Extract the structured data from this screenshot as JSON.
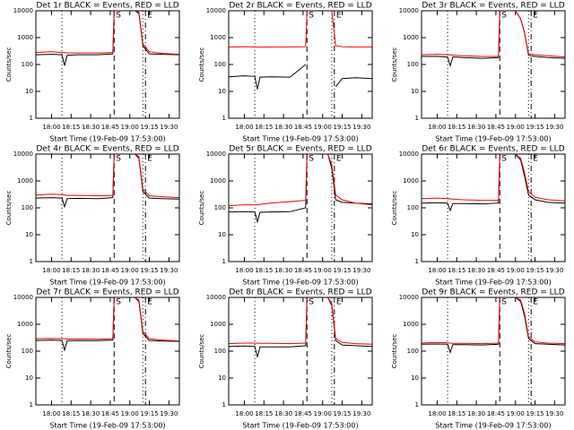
{
  "chart_data": [
    {
      "type": "line",
      "title": "Det 1r BLACK = Events, RED = LLD",
      "x_label": "Start Time (19-Feb-09 17:53:00)",
      "y_label": "Counts/sec",
      "log_y": true,
      "x": [
        "17:48",
        "18:00",
        "18:08",
        "18:10",
        "18:12",
        "18:20",
        "18:35",
        "18:47",
        "18:48",
        "18:55",
        "19:00",
        "19:04",
        "19:07",
        "19:10",
        "19:15",
        "19:25",
        "19:38"
      ],
      "series": [
        {
          "name": "Events",
          "color": "#000000",
          "values": [
            230,
            240,
            230,
            90,
            220,
            230,
            230,
            250,
            10000,
            10000,
            10000,
            10000,
            8000,
            500,
            250,
            240,
            230
          ]
        },
        {
          "name": "LLD",
          "color": "#ff0000",
          "values": [
            280,
            300,
            280,
            280,
            270,
            270,
            270,
            280,
            10000,
            10000,
            10000,
            10000,
            9000,
            600,
            300,
            260,
            240
          ]
        }
      ],
      "xlim": [
        "17:48",
        "19:38"
      ],
      "xticks": [
        "18:00",
        "18:15",
        "18:30",
        "18:45",
        "19:00",
        "19:15",
        "19:30"
      ],
      "ylim": [
        1,
        10000
      ],
      "yticks": [
        1,
        10,
        100,
        1000,
        10000
      ],
      "markers": [
        {
          "x": "18:08",
          "style": "dotted"
        },
        {
          "x": "18:48",
          "style": "dashed",
          "label": "S"
        },
        {
          "x": "19:10",
          "style": "dotted"
        },
        {
          "x": "19:12",
          "style": "dashdot",
          "label": "E"
        }
      ]
    },
    {
      "type": "line",
      "title": "Det 2r BLACK = Events, RED = LLD",
      "x_label": "Start Time (19-Feb-09 17:53:00)",
      "y_label": "Counts/sec",
      "log_y": true,
      "x": [
        "17:48",
        "18:00",
        "18:08",
        "18:10",
        "18:12",
        "18:20",
        "18:35",
        "18:47",
        "18:48",
        "18:55",
        "19:00",
        "19:04",
        "19:07",
        "19:10",
        "19:15",
        "19:25",
        "19:38"
      ],
      "series": [
        {
          "name": "Events",
          "color": "#000000",
          "values": [
            35,
            38,
            36,
            12,
            34,
            35,
            34,
            100,
            null,
            null,
            null,
            null,
            null,
            15,
            30,
            32,
            30
          ]
        },
        {
          "name": "LLD",
          "color": "#ff0000",
          "values": [
            450,
            460,
            450,
            450,
            440,
            450,
            450,
            460,
            10000,
            10000,
            10000,
            10000,
            10000,
            500,
            460,
            450,
            450
          ]
        }
      ],
      "xlim": [
        "17:48",
        "19:38"
      ],
      "xticks": [
        "18:00",
        "18:15",
        "18:30",
        "18:45",
        "19:00",
        "19:15",
        "19:30"
      ],
      "ylim": [
        1,
        10000
      ],
      "yticks": [
        1,
        10,
        100,
        1000,
        10000
      ],
      "markers": [
        {
          "x": "18:08",
          "style": "dotted"
        },
        {
          "x": "18:48",
          "style": "dashed",
          "label": "S"
        },
        {
          "x": "19:07",
          "style": "dotted"
        },
        {
          "x": "19:09",
          "style": "dashdot",
          "label": "E"
        }
      ]
    },
    {
      "type": "line",
      "title": "Det 3r BLACK = Events, RED = LLD",
      "x_label": "Start Time (19-Feb-09 17:53:00)",
      "y_label": "Counts/sec",
      "log_y": true,
      "x": [
        "17:48",
        "18:00",
        "18:08",
        "18:10",
        "18:12",
        "18:20",
        "18:35",
        "18:47",
        "18:48",
        "18:55",
        "19:00",
        "19:04",
        "19:07",
        "19:10",
        "19:15",
        "19:25",
        "19:38"
      ],
      "series": [
        {
          "name": "Events",
          "color": "#000000",
          "values": [
            200,
            200,
            190,
            90,
            190,
            180,
            170,
            180,
            10000,
            10000,
            10000,
            5000,
            1500,
            220,
            200,
            180,
            170
          ]
        },
        {
          "name": "LLD",
          "color": "#ff0000",
          "values": [
            230,
            240,
            230,
            230,
            220,
            210,
            200,
            200,
            10000,
            10000,
            10000,
            5000,
            1500,
            250,
            230,
            210,
            190
          ]
        }
      ],
      "xlim": [
        "17:48",
        "19:38"
      ],
      "xticks": [
        "18:00",
        "18:15",
        "18:30",
        "18:45",
        "19:00",
        "19:15",
        "19:30"
      ],
      "ylim": [
        1,
        10000
      ],
      "yticks": [
        1,
        10,
        100,
        1000,
        10000
      ],
      "markers": [
        {
          "x": "18:08",
          "style": "dotted"
        },
        {
          "x": "18:48",
          "style": "dashed",
          "label": "S"
        },
        {
          "x": "19:10",
          "style": "dotted"
        },
        {
          "x": "19:12",
          "style": "dashdot",
          "label": "E"
        }
      ]
    },
    {
      "type": "line",
      "title": "Det 4r BLACK = Events, RED = LLD",
      "x_label": "Start Time (19-Feb-09 17:53:00)",
      "y_label": "Counts/sec",
      "log_y": true,
      "x": [
        "17:48",
        "18:00",
        "18:08",
        "18:10",
        "18:12",
        "18:20",
        "18:35",
        "18:47",
        "18:48",
        "18:55",
        "19:00",
        "19:04",
        "19:07",
        "19:10",
        "19:15",
        "19:25",
        "19:38"
      ],
      "series": [
        {
          "name": "Events",
          "color": "#000000",
          "values": [
            230,
            240,
            230,
            110,
            220,
            225,
            220,
            240,
            10000,
            10000,
            10000,
            10000,
            7000,
            400,
            230,
            220,
            210
          ]
        },
        {
          "name": "LLD",
          "color": "#ff0000",
          "values": [
            300,
            320,
            310,
            300,
            290,
            290,
            280,
            290,
            10000,
            10000,
            10000,
            10000,
            8000,
            500,
            280,
            260,
            240
          ]
        }
      ],
      "xlim": [
        "17:48",
        "19:38"
      ],
      "xticks": [
        "18:00",
        "18:15",
        "18:30",
        "18:45",
        "19:00",
        "19:15",
        "19:30"
      ],
      "ylim": [
        1,
        10000
      ],
      "yticks": [
        1,
        10,
        100,
        1000,
        10000
      ],
      "markers": [
        {
          "x": "18:08",
          "style": "dotted"
        },
        {
          "x": "18:48",
          "style": "dashed",
          "label": "S"
        },
        {
          "x": "19:10",
          "style": "dotted"
        },
        {
          "x": "19:12",
          "style": "dashdot",
          "label": "E"
        }
      ]
    },
    {
      "type": "line",
      "title": "Det 5r BLACK = Events, RED = LLD",
      "x_label": "Start Time (19-Feb-09 17:53:00)",
      "y_label": "Counts/sec",
      "log_y": true,
      "x": [
        "17:48",
        "18:00",
        "18:08",
        "18:10",
        "18:12",
        "18:20",
        "18:35",
        "18:47",
        "18:48",
        "18:55",
        "19:00",
        "19:04",
        "19:07",
        "19:10",
        "19:15",
        "19:25",
        "19:38"
      ],
      "series": [
        {
          "name": "Events",
          "color": "#000000",
          "values": [
            70,
            72,
            70,
            30,
            68,
            70,
            72,
            100,
            10000,
            10000,
            10000,
            10000,
            3000,
            200,
            160,
            150,
            140
          ]
        },
        {
          "name": "LLD",
          "color": "#ff0000",
          "values": [
            120,
            130,
            130,
            130,
            135,
            150,
            170,
            190,
            10000,
            10000,
            10000,
            10000,
            4000,
            300,
            200,
            150,
            130
          ]
        }
      ],
      "xlim": [
        "17:48",
        "19:38"
      ],
      "xticks": [
        "18:00",
        "18:15",
        "18:30",
        "18:45",
        "19:00",
        "19:15",
        "19:30"
      ],
      "ylim": [
        1,
        10000
      ],
      "yticks": [
        1,
        10,
        100,
        1000,
        10000
      ],
      "markers": [
        {
          "x": "18:08",
          "style": "dotted"
        },
        {
          "x": "18:48",
          "style": "dashed",
          "label": "S"
        },
        {
          "x": "19:07",
          "style": "dotted"
        },
        {
          "x": "19:09",
          "style": "dashdot",
          "label": "E"
        }
      ]
    },
    {
      "type": "line",
      "title": "Det 6r BLACK = Events, RED = LLD",
      "x_label": "Start Time (19-Feb-09 17:53:00)",
      "y_label": "Counts/sec",
      "log_y": true,
      "x": [
        "17:48",
        "18:00",
        "18:08",
        "18:10",
        "18:12",
        "18:20",
        "18:35",
        "18:47",
        "18:48",
        "18:55",
        "19:00",
        "19:04",
        "19:07",
        "19:10",
        "19:15",
        "19:25",
        "19:38"
      ],
      "series": [
        {
          "name": "Events",
          "color": "#000000",
          "values": [
            150,
            155,
            150,
            80,
            145,
            145,
            140,
            150,
            10000,
            10000,
            10000,
            6000,
            1500,
            300,
            200,
            160,
            150
          ]
        },
        {
          "name": "LLD",
          "color": "#ff0000",
          "values": [
            220,
            230,
            220,
            215,
            210,
            200,
            190,
            190,
            10000,
            10000,
            10000,
            7000,
            2000,
            400,
            250,
            200,
            180
          ]
        }
      ],
      "xlim": [
        "17:48",
        "19:38"
      ],
      "xticks": [
        "18:00",
        "18:15",
        "18:30",
        "18:45",
        "19:00",
        "19:15",
        "19:30"
      ],
      "ylim": [
        1,
        10000
      ],
      "yticks": [
        1,
        10,
        100,
        1000,
        10000
      ],
      "markers": [
        {
          "x": "18:08",
          "style": "dotted"
        },
        {
          "x": "18:48",
          "style": "dashed",
          "label": "S"
        },
        {
          "x": "19:10",
          "style": "dotted"
        },
        {
          "x": "19:12",
          "style": "dashdot",
          "label": "E"
        }
      ]
    },
    {
      "type": "line",
      "title": "Det 7r BLACK = Events, RED = LLD",
      "x_label": "Start Time (19-Feb-09 17:53:00)",
      "y_label": "Counts/sec",
      "log_y": true,
      "x": [
        "17:48",
        "18:00",
        "18:08",
        "18:10",
        "18:12",
        "18:20",
        "18:35",
        "18:47",
        "18:48",
        "18:55",
        "19:00",
        "19:04",
        "19:07",
        "19:10",
        "19:15",
        "19:25",
        "19:38"
      ],
      "series": [
        {
          "name": "Events",
          "color": "#000000",
          "values": [
            250,
            260,
            250,
            110,
            245,
            250,
            245,
            260,
            10000,
            10000,
            10000,
            10000,
            7000,
            450,
            250,
            240,
            230
          ]
        },
        {
          "name": "LLD",
          "color": "#ff0000",
          "values": [
            290,
            300,
            290,
            290,
            285,
            285,
            280,
            290,
            10000,
            10000,
            10000,
            10000,
            8000,
            550,
            290,
            260,
            240
          ]
        }
      ],
      "xlim": [
        "17:48",
        "19:38"
      ],
      "xticks": [
        "18:00",
        "18:15",
        "18:30",
        "18:45",
        "19:00",
        "19:15",
        "19:30"
      ],
      "ylim": [
        1,
        10000
      ],
      "yticks": [
        1,
        10,
        100,
        1000,
        10000
      ],
      "markers": [
        {
          "x": "18:08",
          "style": "dotted"
        },
        {
          "x": "18:48",
          "style": "dashed",
          "label": "S"
        },
        {
          "x": "19:10",
          "style": "dotted"
        },
        {
          "x": "19:12",
          "style": "dashdot",
          "label": "E"
        }
      ]
    },
    {
      "type": "line",
      "title": "Det 8r BLACK = Events, RED = LLD",
      "x_label": "Start Time (19-Feb-09 17:53:00)",
      "y_label": "Counts/sec",
      "log_y": true,
      "x": [
        "17:48",
        "18:00",
        "18:08",
        "18:10",
        "18:12",
        "18:20",
        "18:35",
        "18:47",
        "18:48",
        "18:55",
        "19:00",
        "19:04",
        "19:07",
        "19:10",
        "19:15",
        "19:25",
        "19:38"
      ],
      "series": [
        {
          "name": "Events",
          "color": "#000000",
          "values": [
            150,
            155,
            150,
            60,
            145,
            145,
            145,
            160,
            10000,
            10000,
            10000,
            10000,
            5000,
            250,
            170,
            160,
            150
          ]
        },
        {
          "name": "LLD",
          "color": "#ff0000",
          "values": [
            190,
            200,
            200,
            200,
            195,
            195,
            190,
            200,
            10000,
            10000,
            10000,
            10000,
            6000,
            300,
            210,
            190,
            180
          ]
        }
      ],
      "xlim": [
        "17:48",
        "19:38"
      ],
      "xticks": [
        "18:00",
        "18:15",
        "18:30",
        "18:45",
        "19:00",
        "19:15",
        "19:30"
      ],
      "ylim": [
        1,
        10000
      ],
      "yticks": [
        1,
        10,
        100,
        1000,
        10000
      ],
      "markers": [
        {
          "x": "18:08",
          "style": "dotted"
        },
        {
          "x": "18:48",
          "style": "dashed",
          "label": "S"
        },
        {
          "x": "19:07",
          "style": "dotted"
        },
        {
          "x": "19:09",
          "style": "dashdot",
          "label": "E"
        }
      ]
    },
    {
      "type": "line",
      "title": "Det 9r BLACK = Events, RED = LLD",
      "x_label": "Start Time (19-Feb-09 17:53:00)",
      "y_label": "Counts/sec",
      "log_y": true,
      "x": [
        "17:48",
        "18:00",
        "18:08",
        "18:10",
        "18:12",
        "18:20",
        "18:35",
        "18:47",
        "18:48",
        "18:55",
        "19:00",
        "19:04",
        "19:07",
        "19:10",
        "19:15",
        "19:25",
        "19:38"
      ],
      "series": [
        {
          "name": "Events",
          "color": "#000000",
          "values": [
            180,
            185,
            180,
            90,
            175,
            175,
            170,
            180,
            10000,
            10000,
            10000,
            7000,
            2000,
            300,
            190,
            180,
            170
          ]
        },
        {
          "name": "LLD",
          "color": "#ff0000",
          "values": [
            200,
            210,
            205,
            200,
            195,
            195,
            190,
            200,
            10000,
            10000,
            10000,
            8000,
            2500,
            350,
            220,
            200,
            190
          ]
        }
      ],
      "xlim": [
        "17:48",
        "19:38"
      ],
      "xticks": [
        "18:00",
        "18:15",
        "18:30",
        "18:45",
        "19:00",
        "19:15",
        "19:30"
      ],
      "ylim": [
        1,
        10000
      ],
      "yticks": [
        1,
        10,
        100,
        1000,
        10000
      ],
      "markers": [
        {
          "x": "18:08",
          "style": "dotted"
        },
        {
          "x": "18:48",
          "style": "dashed",
          "label": "S"
        },
        {
          "x": "19:10",
          "style": "dotted"
        },
        {
          "x": "19:12",
          "style": "dashdot",
          "label": "E"
        }
      ]
    }
  ]
}
